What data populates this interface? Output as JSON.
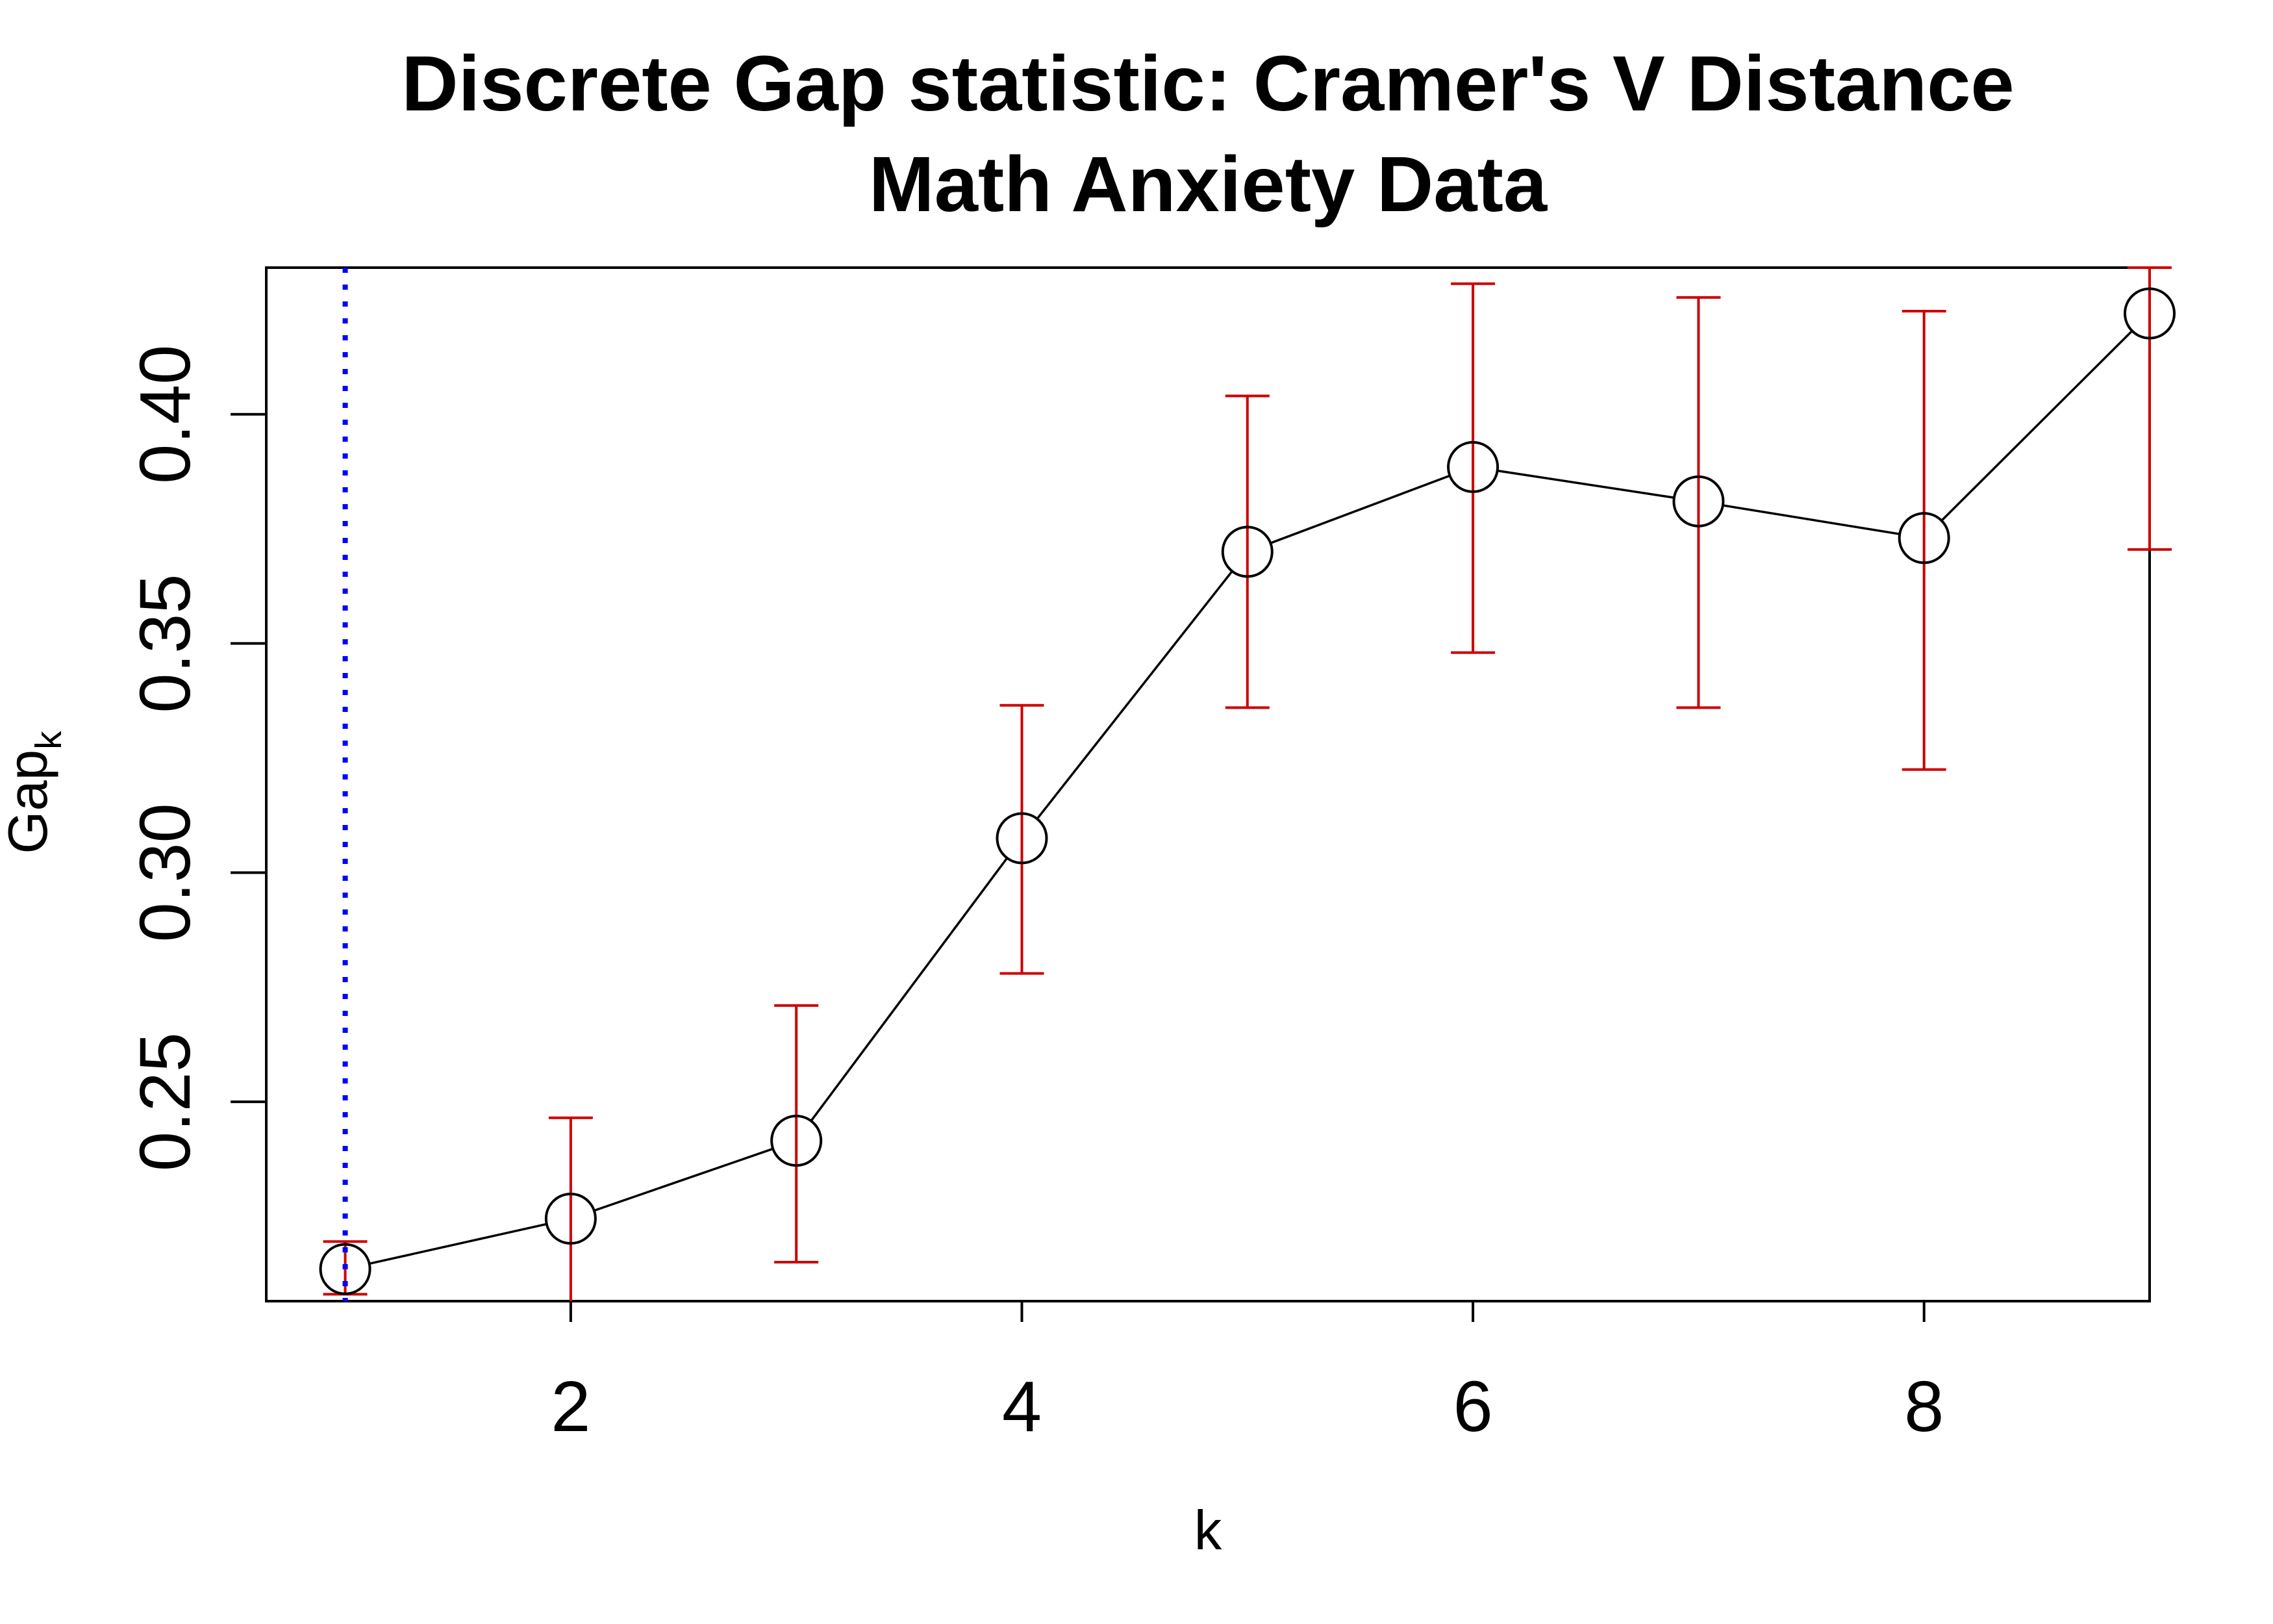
{
  "chart_data": {
    "type": "line",
    "title": "Discrete Gap statistic: Cramer's V Distance",
    "subtitle": "Math Anxiety Data",
    "xlabel": "k",
    "ylabel": {
      "main": "Gap",
      "subscript": "k"
    },
    "x": [
      1,
      2,
      3,
      4,
      5,
      6,
      7,
      8,
      9
    ],
    "series": [
      {
        "values": [
          0.2135,
          0.2245,
          0.2415,
          0.3075,
          0.37,
          0.3885,
          0.381,
          0.373,
          0.422
        ],
        "error_low": [
          0.208,
          0.205,
          0.215,
          0.278,
          0.336,
          0.348,
          0.336,
          0.3225,
          0.3705
        ],
        "error_high": [
          0.2195,
          0.2465,
          0.271,
          0.3365,
          0.404,
          0.4285,
          0.4255,
          0.4225,
          0.432
        ],
        "line_color": "#000000",
        "error_color": "#CC0000"
      }
    ],
    "selected_k": 1,
    "selected_line_color": "#0000FF",
    "xlim": [
      0.65,
      9.0
    ],
    "ylim": [
      0.2065,
      0.432
    ],
    "xticks": [
      2,
      4,
      6,
      8
    ],
    "yticks": [
      0.25,
      0.3,
      0.35,
      0.4
    ],
    "ytick_labels": [
      "0.25",
      "0.30",
      "0.35",
      "0.40"
    ],
    "grid": false,
    "legend": "none"
  }
}
